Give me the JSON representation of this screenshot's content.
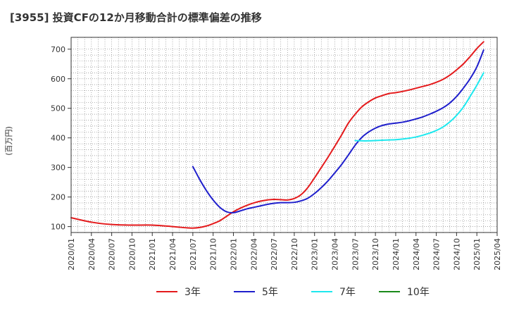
{
  "chart_data": {
    "type": "line",
    "title": "[3955]  投資CFの12か月移動合計の標準偏差の推移",
    "ylabel": "(百万円)",
    "xlabel": "",
    "ylim": [
      80,
      740
    ],
    "xlim": [
      "2020-01",
      "2025-04"
    ],
    "y_ticks": [
      100,
      200,
      300,
      400,
      500,
      600,
      700
    ],
    "x_ticks": [
      "2020/01",
      "2020/04",
      "2020/07",
      "2020/10",
      "2021/01",
      "2021/04",
      "2021/07",
      "2021/10",
      "2022/01",
      "2022/04",
      "2022/07",
      "2022/10",
      "2023/01",
      "2023/04",
      "2023/07",
      "2023/10",
      "2024/01",
      "2024/04",
      "2024/07",
      "2024/10",
      "2025/01",
      "2025/04"
    ],
    "grid": true,
    "legend_position": "bottom",
    "series": [
      {
        "name": "3年",
        "color": "#e41a1c",
        "points": [
          [
            "2020-01",
            130
          ],
          [
            "2020-04",
            115
          ],
          [
            "2020-07",
            107
          ],
          [
            "2020-10",
            105
          ],
          [
            "2021-01",
            105
          ],
          [
            "2021-04",
            100
          ],
          [
            "2021-06",
            96
          ],
          [
            "2021-07",
            95
          ],
          [
            "2021-08",
            97
          ],
          [
            "2021-09",
            102
          ],
          [
            "2021-10",
            110
          ],
          [
            "2021-11",
            120
          ],
          [
            "2021-12",
            135
          ],
          [
            "2022-01",
            150
          ],
          [
            "2022-02",
            162
          ],
          [
            "2022-03",
            172
          ],
          [
            "2022-04",
            180
          ],
          [
            "2022-05",
            186
          ],
          [
            "2022-06",
            190
          ],
          [
            "2022-07",
            192
          ],
          [
            "2022-08",
            191
          ],
          [
            "2022-09",
            190
          ],
          [
            "2022-10",
            195
          ],
          [
            "2022-11",
            208
          ],
          [
            "2022-12",
            232
          ],
          [
            "2023-01",
            265
          ],
          [
            "2023-02",
            300
          ],
          [
            "2023-03",
            335
          ],
          [
            "2023-04",
            372
          ],
          [
            "2023-05",
            410
          ],
          [
            "2023-06",
            450
          ],
          [
            "2023-07",
            480
          ],
          [
            "2023-08",
            505
          ],
          [
            "2023-09",
            522
          ],
          [
            "2023-10",
            535
          ],
          [
            "2023-11",
            543
          ],
          [
            "2023-12",
            550
          ],
          [
            "2024-01",
            553
          ],
          [
            "2024-02",
            557
          ],
          [
            "2024-03",
            562
          ],
          [
            "2024-04",
            568
          ],
          [
            "2024-05",
            574
          ],
          [
            "2024-06",
            580
          ],
          [
            "2024-07",
            588
          ],
          [
            "2024-08",
            598
          ],
          [
            "2024-09",
            612
          ],
          [
            "2024-10",
            630
          ],
          [
            "2024-11",
            650
          ],
          [
            "2024-12",
            675
          ],
          [
            "2025-01",
            702
          ],
          [
            "2025-02",
            725
          ]
        ]
      },
      {
        "name": "5年",
        "color": "#1f1fcc",
        "points": [
          [
            "2021-07",
            303
          ],
          [
            "2021-08",
            260
          ],
          [
            "2021-09",
            222
          ],
          [
            "2021-10",
            190
          ],
          [
            "2021-11",
            165
          ],
          [
            "2021-12",
            150
          ],
          [
            "2022-01",
            147
          ],
          [
            "2022-02",
            153
          ],
          [
            "2022-03",
            160
          ],
          [
            "2022-04",
            165
          ],
          [
            "2022-05",
            170
          ],
          [
            "2022-06",
            175
          ],
          [
            "2022-07",
            179
          ],
          [
            "2022-08",
            181
          ],
          [
            "2022-09",
            181
          ],
          [
            "2022-10",
            182
          ],
          [
            "2022-11",
            187
          ],
          [
            "2022-12",
            196
          ],
          [
            "2023-01",
            212
          ],
          [
            "2023-02",
            232
          ],
          [
            "2023-03",
            255
          ],
          [
            "2023-04",
            282
          ],
          [
            "2023-05",
            310
          ],
          [
            "2023-06",
            342
          ],
          [
            "2023-07",
            375
          ],
          [
            "2023-08",
            402
          ],
          [
            "2023-09",
            420
          ],
          [
            "2023-10",
            433
          ],
          [
            "2023-11",
            442
          ],
          [
            "2023-12",
            447
          ],
          [
            "2024-01",
            450
          ],
          [
            "2024-02",
            453
          ],
          [
            "2024-03",
            458
          ],
          [
            "2024-04",
            464
          ],
          [
            "2024-05",
            471
          ],
          [
            "2024-06",
            480
          ],
          [
            "2024-07",
            490
          ],
          [
            "2024-08",
            502
          ],
          [
            "2024-09",
            518
          ],
          [
            "2024-10",
            540
          ],
          [
            "2024-11",
            568
          ],
          [
            "2024-12",
            600
          ],
          [
            "2025-01",
            640
          ],
          [
            "2025-02",
            697
          ]
        ]
      },
      {
        "name": "7年",
        "color": "#1ee8ee",
        "points": [
          [
            "2023-07",
            391
          ],
          [
            "2023-08",
            390
          ],
          [
            "2023-09",
            390
          ],
          [
            "2023-10",
            391
          ],
          [
            "2023-11",
            392
          ],
          [
            "2023-12",
            393
          ],
          [
            "2024-01",
            394
          ],
          [
            "2024-02",
            396
          ],
          [
            "2024-03",
            399
          ],
          [
            "2024-04",
            403
          ],
          [
            "2024-05",
            409
          ],
          [
            "2024-06",
            416
          ],
          [
            "2024-07",
            425
          ],
          [
            "2024-08",
            437
          ],
          [
            "2024-09",
            454
          ],
          [
            "2024-10",
            476
          ],
          [
            "2024-11",
            504
          ],
          [
            "2024-12",
            540
          ],
          [
            "2025-01",
            578
          ],
          [
            "2025-02",
            620
          ]
        ]
      },
      {
        "name": "10年",
        "color": "#1a8a1a",
        "points": []
      }
    ]
  }
}
